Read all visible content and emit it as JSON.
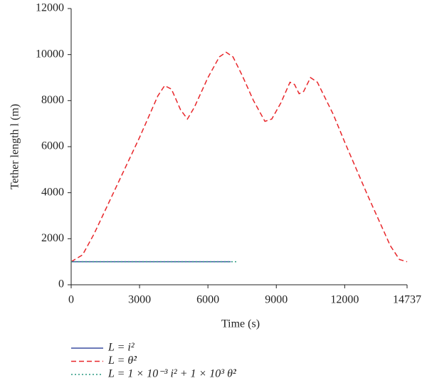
{
  "chart_data": {
    "type": "line",
    "x_label": "Time (s)",
    "y_label": "Tether length l (m)",
    "xlim": [
      0,
      14737
    ],
    "xticks": [
      0,
      3000,
      6000,
      9000,
      12000,
      14737
    ],
    "ylim": [
      0,
      12000
    ],
    "yticks": [
      0,
      2000,
      4000,
      6000,
      8000,
      10000,
      12000
    ],
    "series": [
      {
        "name": "L = i²",
        "color": "#3b4fa0",
        "style": "solid",
        "x": [
          0,
          7000
        ],
        "values": [
          1000,
          1000
        ]
      },
      {
        "name": "L = θ̇²",
        "color": "#e8262a",
        "style": "dashed",
        "x": [
          0,
          500,
          1000,
          2000,
          3000,
          3800,
          4100,
          4400,
          4800,
          5100,
          5400,
          6000,
          6500,
          6800,
          7100,
          7500,
          8000,
          8500,
          8800,
          9200,
          9600,
          9800,
          10000,
          10200,
          10500,
          10800,
          11500,
          12000,
          13000,
          14000,
          14400,
          14737
        ],
        "values": [
          1000,
          1300,
          2200,
          4300,
          6400,
          8200,
          8650,
          8500,
          7600,
          7200,
          7700,
          9000,
          9900,
          10100,
          9900,
          9100,
          8000,
          7100,
          7200,
          7900,
          8800,
          8700,
          8300,
          8400,
          9000,
          8800,
          7400,
          6200,
          3900,
          1700,
          1100,
          1000
        ]
      },
      {
        "name": "L = 1 × 10⁻³ i² + 1 × 10³ θ̇²",
        "color": "#2a9a80",
        "style": "dotted",
        "x": [
          0,
          7300
        ],
        "values": [
          1000,
          1000
        ]
      }
    ]
  }
}
